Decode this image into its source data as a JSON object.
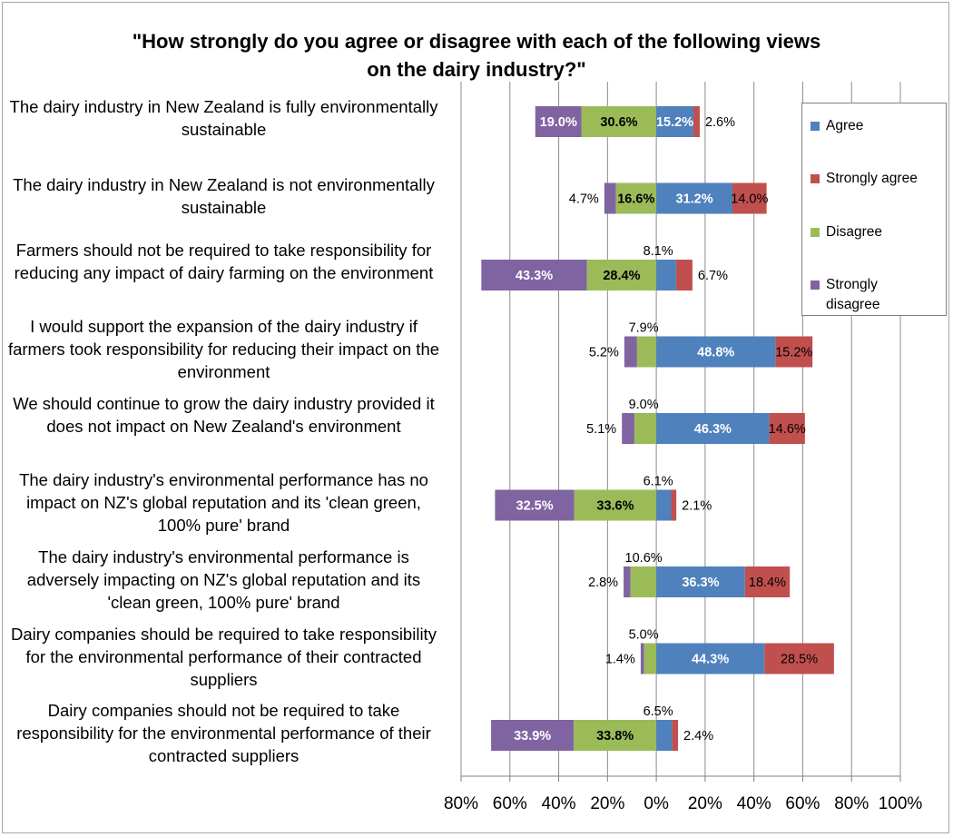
{
  "chart_data": {
    "type": "bar",
    "orientation": "horizontal",
    "stacked": "diverging",
    "title": "\"How strongly do you agree or disagree with each of the following views\non the dairy industry?\"",
    "categories": [
      "The dairy industry in New Zealand is fully environmentally sustainable",
      "The dairy industry in New Zealand is not environmentally sustainable",
      "Farmers should not be required to take responsibility for reducing any impact of dairy farming on the environment",
      "I would support the expansion of the dairy industry if farmers took responsibility for reducing their impact on the environment",
      "We should continue to grow the dairy industry provided it does not impact on New Zealand's environment",
      "The dairy industry's environmental performance has no impact on NZ's global reputation and its 'clean green, 100% pure' brand",
      "The dairy industry's environmental performance is adversely impacting on NZ's global reputation and its 'clean green, 100% pure' brand",
      "Dairy companies should be required to take responsibility for the environmental performance of their contracted suppliers",
      "Dairy companies should not be required to take responsibility for the environmental performance of their contracted suppliers"
    ],
    "series": [
      {
        "name": "Agree",
        "color": "#4f81bd",
        "values": [
          15.2,
          31.2,
          8.1,
          48.8,
          46.3,
          6.1,
          36.3,
          44.3,
          6.5
        ]
      },
      {
        "name": "Strongly agree",
        "color": "#c0504d",
        "values": [
          2.6,
          14.0,
          6.7,
          15.2,
          14.6,
          2.1,
          18.4,
          28.5,
          2.4
        ]
      },
      {
        "name": "Disagree",
        "color": "#9bbb59",
        "values": [
          30.6,
          16.6,
          28.4,
          7.9,
          9.0,
          33.6,
          10.6,
          5.0,
          33.8
        ]
      },
      {
        "name": "Strongly disagree",
        "color": "#8064a2",
        "values": [
          19.0,
          4.7,
          43.3,
          5.2,
          5.1,
          32.5,
          2.8,
          1.4,
          33.9
        ]
      }
    ],
    "data_labels": [
      {
        "agree": "15.2%",
        "strongly_agree": "2.6%",
        "disagree": "30.6%",
        "strongly_disagree": "19.0%"
      },
      {
        "agree": "31.2%",
        "strongly_agree": "14.0%",
        "disagree": "16.6%",
        "strongly_disagree": "4.7%"
      },
      {
        "agree": "8.1%",
        "strongly_agree": "6.7%",
        "disagree": "28.4%",
        "strongly_disagree": "43.3%"
      },
      {
        "agree": "48.8%",
        "strongly_agree": "15.2%",
        "disagree": "7.9%",
        "strongly_disagree": "5.2%"
      },
      {
        "agree": "46.3%",
        "strongly_agree": "14.6%",
        "disagree": "9.0%",
        "strongly_disagree": "5.1%"
      },
      {
        "agree": "6.1%",
        "strongly_agree": "2.1%",
        "disagree": "33.6%",
        "strongly_disagree": "32.5%"
      },
      {
        "agree": "36.3%",
        "strongly_agree": "18.4%",
        "disagree": "10.6%",
        "strongly_disagree": "2.8%"
      },
      {
        "agree": "44.3%",
        "strongly_agree": "28.5%",
        "disagree": "5.0%",
        "strongly_disagree": "1.4%"
      },
      {
        "agree": "6.5%",
        "strongly_agree": "2.4%",
        "disagree": "33.8%",
        "strongly_disagree": "33.9%"
      }
    ],
    "xaxis": {
      "tick_values": [
        -80,
        -60,
        -40,
        -20,
        0,
        20,
        40,
        60,
        80,
        100
      ],
      "tick_labels": [
        "80%",
        "60%",
        "40%",
        "20%",
        "0%",
        "20%",
        "40%",
        "60%",
        "80%",
        "100%"
      ],
      "xlim": [
        -80,
        100
      ]
    },
    "grid": true,
    "legend_position": "top-right"
  },
  "legend": {
    "items": [
      "Agree",
      "Strongly agree",
      "Disagree",
      "Strongly\ndisagree"
    ]
  }
}
